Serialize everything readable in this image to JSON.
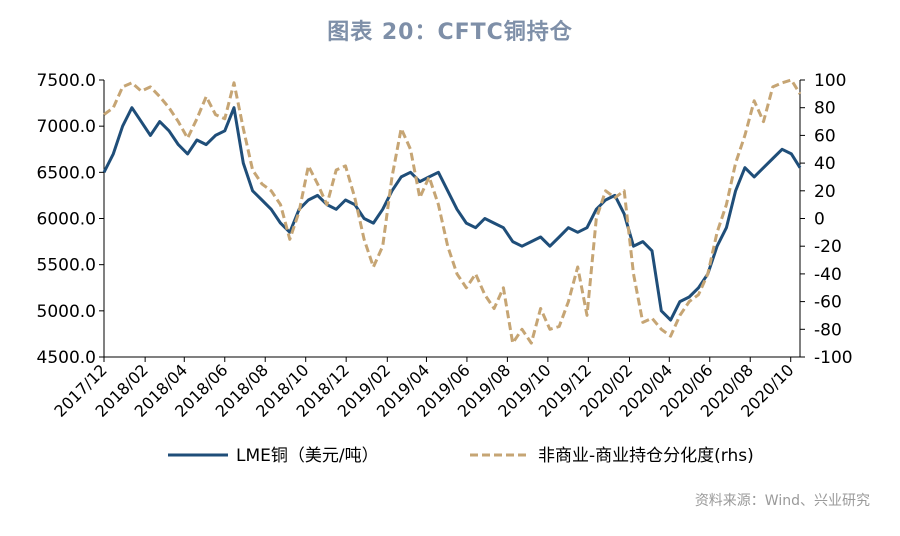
{
  "title": "图表 20：CFTC铜持仓",
  "source": "资料来源：Wind、兴业研究",
  "colors": {
    "lme": "#1f4e79",
    "cftc": "#c6a574",
    "axis": "#000000",
    "title": "#7e8fa8"
  },
  "chart_data": {
    "type": "line",
    "title": "图表 20：CFTC铜持仓",
    "xlabel": "",
    "ylabel": "",
    "x_ticks": [
      "2017/12",
      "2018/02",
      "2018/04",
      "2018/06",
      "2018/08",
      "2018/10",
      "2018/12",
      "2019/02",
      "2019/04",
      "2019/06",
      "2019/08",
      "2019/10",
      "2019/12",
      "2020/02",
      "2020/04",
      "2020/06",
      "2020/08",
      "2020/10"
    ],
    "x_range": [
      "2017-12-01",
      "2020-10-15"
    ],
    "y_left": {
      "min": 4500,
      "max": 7500,
      "ticks": [
        "4500.0",
        "5000.0",
        "5500.0",
        "6000.0",
        "6500.0",
        "7000.0",
        "7500.0"
      ]
    },
    "y_right": {
      "min": -100,
      "max": 100,
      "ticks": [
        "-100",
        "-80",
        "-60",
        "-40",
        "-20",
        "0",
        "20",
        "40",
        "60",
        "80",
        "100"
      ]
    },
    "grid": false,
    "legend_position": "bottom",
    "series": [
      {
        "name": "LME铜（美元/吨）",
        "axis": "left",
        "style": "solid",
        "points": [
          [
            "2017-12-01",
            6500
          ],
          [
            "2017-12-15",
            6700
          ],
          [
            "2017-12-29",
            7000
          ],
          [
            "2018-01-12",
            7200
          ],
          [
            "2018-01-26",
            7050
          ],
          [
            "2018-02-09",
            6900
          ],
          [
            "2018-02-23",
            7050
          ],
          [
            "2018-03-09",
            6950
          ],
          [
            "2018-03-23",
            6800
          ],
          [
            "2018-04-06",
            6700
          ],
          [
            "2018-04-20",
            6850
          ],
          [
            "2018-05-04",
            6800
          ],
          [
            "2018-05-18",
            6900
          ],
          [
            "2018-06-01",
            6950
          ],
          [
            "2018-06-15",
            7200
          ],
          [
            "2018-06-29",
            6600
          ],
          [
            "2018-07-13",
            6300
          ],
          [
            "2018-07-27",
            6200
          ],
          [
            "2018-08-10",
            6100
          ],
          [
            "2018-08-24",
            5950
          ],
          [
            "2018-09-07",
            5850
          ],
          [
            "2018-09-21",
            6100
          ],
          [
            "2018-10-05",
            6200
          ],
          [
            "2018-10-19",
            6250
          ],
          [
            "2018-11-02",
            6150
          ],
          [
            "2018-11-16",
            6100
          ],
          [
            "2018-11-30",
            6200
          ],
          [
            "2018-12-14",
            6150
          ],
          [
            "2018-12-28",
            6000
          ],
          [
            "2019-01-11",
            5950
          ],
          [
            "2019-01-25",
            6100
          ],
          [
            "2019-02-08",
            6300
          ],
          [
            "2019-02-22",
            6450
          ],
          [
            "2019-03-08",
            6500
          ],
          [
            "2019-03-22",
            6400
          ],
          [
            "2019-04-05",
            6450
          ],
          [
            "2019-04-19",
            6500
          ],
          [
            "2019-05-03",
            6300
          ],
          [
            "2019-05-17",
            6100
          ],
          [
            "2019-05-31",
            5950
          ],
          [
            "2019-06-14",
            5900
          ],
          [
            "2019-06-28",
            6000
          ],
          [
            "2019-07-12",
            5950
          ],
          [
            "2019-07-26",
            5900
          ],
          [
            "2019-08-09",
            5750
          ],
          [
            "2019-08-23",
            5700
          ],
          [
            "2019-09-06",
            5750
          ],
          [
            "2019-09-20",
            5800
          ],
          [
            "2019-10-04",
            5700
          ],
          [
            "2019-10-18",
            5800
          ],
          [
            "2019-11-01",
            5900
          ],
          [
            "2019-11-15",
            5850
          ],
          [
            "2019-11-29",
            5900
          ],
          [
            "2019-12-13",
            6100
          ],
          [
            "2019-12-27",
            6200
          ],
          [
            "2020-01-10",
            6250
          ],
          [
            "2020-01-24",
            6050
          ],
          [
            "2020-02-07",
            5700
          ],
          [
            "2020-02-21",
            5750
          ],
          [
            "2020-03-06",
            5650
          ],
          [
            "2020-03-20",
            5000
          ],
          [
            "2020-04-03",
            4900
          ],
          [
            "2020-04-17",
            5100
          ],
          [
            "2020-05-01",
            5150
          ],
          [
            "2020-05-15",
            5250
          ],
          [
            "2020-05-29",
            5400
          ],
          [
            "2020-06-12",
            5700
          ],
          [
            "2020-06-26",
            5900
          ],
          [
            "2020-07-10",
            6300
          ],
          [
            "2020-07-24",
            6550
          ],
          [
            "2020-08-07",
            6450
          ],
          [
            "2020-08-21",
            6550
          ],
          [
            "2020-09-04",
            6650
          ],
          [
            "2020-09-18",
            6750
          ],
          [
            "2020-10-02",
            6700
          ],
          [
            "2020-10-15",
            6550
          ]
        ]
      },
      {
        "name": "非商业-商业持仓分化度(rhs)",
        "axis": "right",
        "style": "dashed",
        "points": [
          [
            "2017-12-01",
            75
          ],
          [
            "2017-12-15",
            80
          ],
          [
            "2017-12-29",
            95
          ],
          [
            "2018-01-12",
            98
          ],
          [
            "2018-01-26",
            92
          ],
          [
            "2018-02-09",
            95
          ],
          [
            "2018-02-23",
            88
          ],
          [
            "2018-03-09",
            80
          ],
          [
            "2018-03-23",
            70
          ],
          [
            "2018-04-06",
            58
          ],
          [
            "2018-04-20",
            72
          ],
          [
            "2018-05-04",
            88
          ],
          [
            "2018-05-18",
            75
          ],
          [
            "2018-06-01",
            72
          ],
          [
            "2018-06-15",
            98
          ],
          [
            "2018-06-29",
            65
          ],
          [
            "2018-07-13",
            35
          ],
          [
            "2018-07-27",
            25
          ],
          [
            "2018-08-10",
            20
          ],
          [
            "2018-08-24",
            10
          ],
          [
            "2018-09-07",
            -15
          ],
          [
            "2018-09-21",
            5
          ],
          [
            "2018-10-05",
            38
          ],
          [
            "2018-10-19",
            25
          ],
          [
            "2018-11-02",
            10
          ],
          [
            "2018-11-16",
            35
          ],
          [
            "2018-11-30",
            38
          ],
          [
            "2018-12-14",
            15
          ],
          [
            "2018-12-28",
            -15
          ],
          [
            "2019-01-11",
            -35
          ],
          [
            "2019-01-25",
            -20
          ],
          [
            "2019-02-08",
            30
          ],
          [
            "2019-02-22",
            65
          ],
          [
            "2019-03-08",
            50
          ],
          [
            "2019-03-22",
            15
          ],
          [
            "2019-04-05",
            30
          ],
          [
            "2019-04-19",
            10
          ],
          [
            "2019-05-03",
            -20
          ],
          [
            "2019-05-17",
            -40
          ],
          [
            "2019-05-31",
            -50
          ],
          [
            "2019-06-14",
            -40
          ],
          [
            "2019-06-28",
            -55
          ],
          [
            "2019-07-12",
            -65
          ],
          [
            "2019-07-26",
            -50
          ],
          [
            "2019-08-09",
            -90
          ],
          [
            "2019-08-23",
            -80
          ],
          [
            "2019-09-06",
            -90
          ],
          [
            "2019-09-20",
            -65
          ],
          [
            "2019-10-04",
            -80
          ],
          [
            "2019-10-18",
            -78
          ],
          [
            "2019-11-01",
            -60
          ],
          [
            "2019-11-15",
            -35
          ],
          [
            "2019-11-29",
            -70
          ],
          [
            "2019-12-13",
            0
          ],
          [
            "2019-12-27",
            20
          ],
          [
            "2020-01-10",
            15
          ],
          [
            "2020-01-24",
            20
          ],
          [
            "2020-02-07",
            -40
          ],
          [
            "2020-02-21",
            -75
          ],
          [
            "2020-03-06",
            -72
          ],
          [
            "2020-03-20",
            -80
          ],
          [
            "2020-04-03",
            -85
          ],
          [
            "2020-04-17",
            -70
          ],
          [
            "2020-05-01",
            -60
          ],
          [
            "2020-05-15",
            -55
          ],
          [
            "2020-05-29",
            -40
          ],
          [
            "2020-06-12",
            -10
          ],
          [
            "2020-06-26",
            10
          ],
          [
            "2020-07-10",
            40
          ],
          [
            "2020-07-24",
            60
          ],
          [
            "2020-08-07",
            85
          ],
          [
            "2020-08-21",
            70
          ],
          [
            "2020-09-04",
            95
          ],
          [
            "2020-09-18",
            98
          ],
          [
            "2020-10-02",
            100
          ],
          [
            "2020-10-15",
            90
          ]
        ]
      }
    ]
  }
}
